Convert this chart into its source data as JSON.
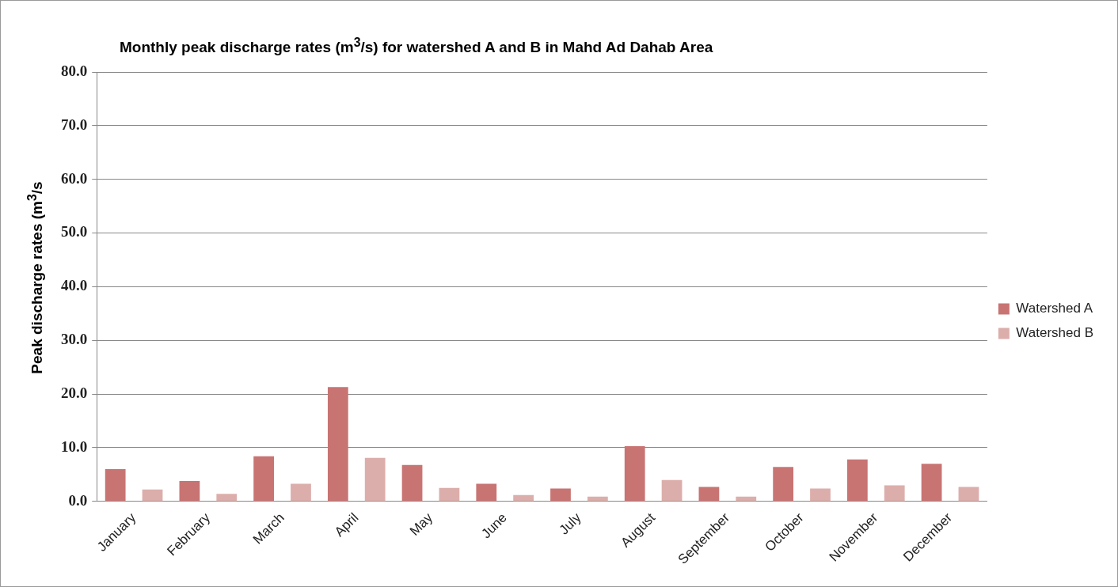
{
  "chart_data": {
    "type": "bar",
    "title": "Monthly peak discharge rates (m$^{3}$/s) for watershed A and B in Mahd Ad Dahab Area",
    "ylabel": "Peak discharge rates (m$^{3}$/s",
    "categories": [
      "January",
      "February",
      "March",
      "April",
      "May",
      "June",
      "July",
      "August",
      "September",
      "October",
      "November",
      "December"
    ],
    "series": [
      {
        "name": "Watershed A",
        "color": "#c87473",
        "values": [
          6.0,
          3.8,
          8.4,
          21.3,
          6.8,
          3.3,
          2.4,
          10.3,
          2.7,
          6.4,
          7.8,
          7.0
        ]
      },
      {
        "name": "Watershed B",
        "color": "#dcaeab",
        "values": [
          2.2,
          1.4,
          3.3,
          8.1,
          2.5,
          1.2,
          0.9,
          4.0,
          0.9,
          2.4,
          3.0,
          2.7
        ]
      }
    ],
    "ylim": [
      0,
      80
    ],
    "yticks": [
      {
        "value": 0,
        "label": "0.0"
      },
      {
        "value": 10,
        "label": "10.0"
      },
      {
        "value": 20,
        "label": "20.0"
      },
      {
        "value": 30,
        "label": "30.0"
      },
      {
        "value": 40,
        "label": "40.0"
      },
      {
        "value": 50,
        "label": "50.0"
      },
      {
        "value": 60,
        "label": "60.0"
      },
      {
        "value": 70,
        "label": "70.0"
      },
      {
        "value": 80,
        "label": "80.0"
      }
    ],
    "grid": "y",
    "legend": "right"
  }
}
